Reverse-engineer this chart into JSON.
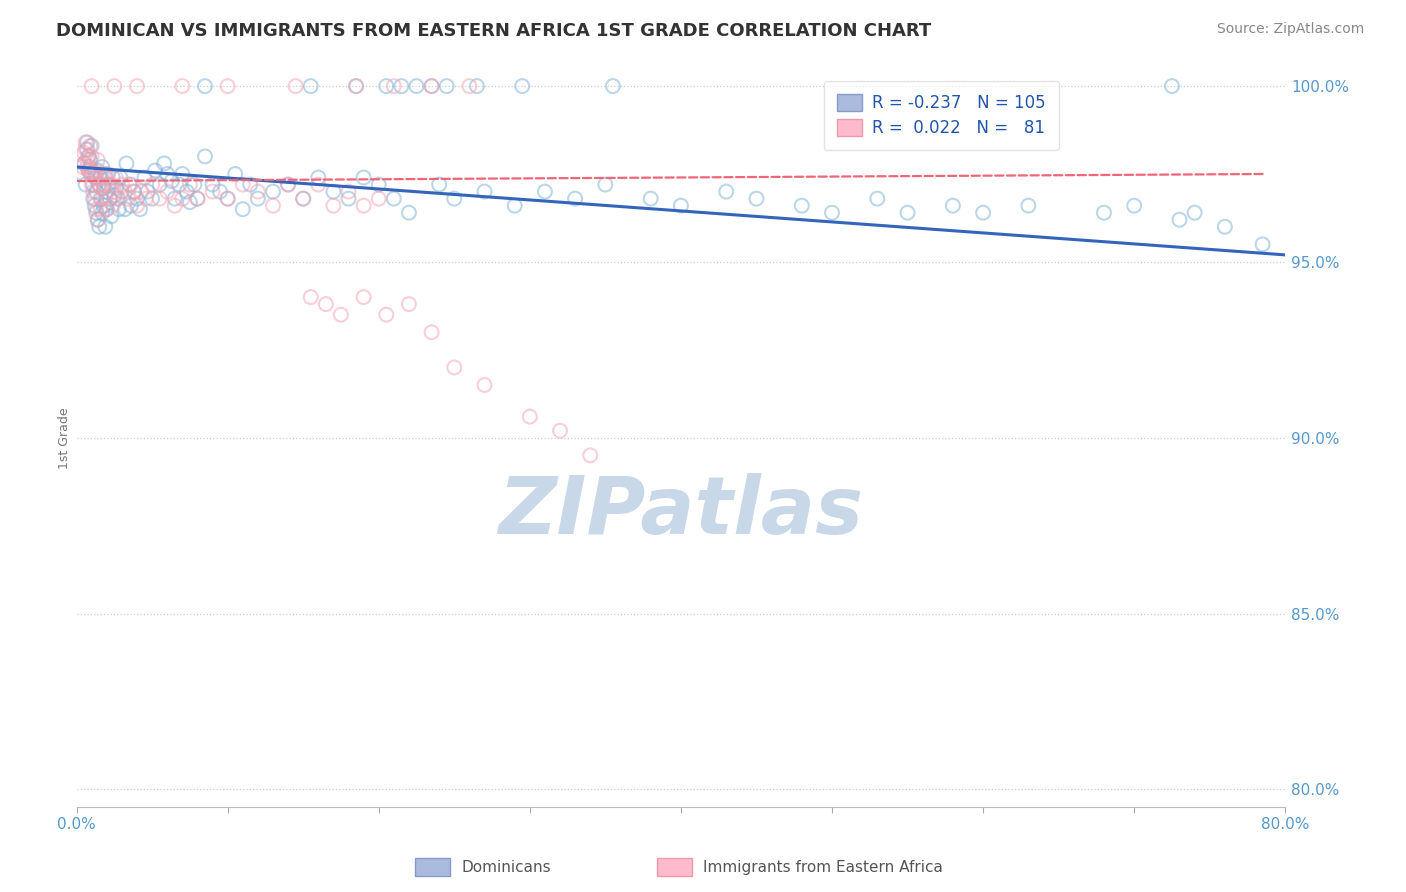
{
  "title": "DOMINICAN VS IMMIGRANTS FROM EASTERN AFRICA 1ST GRADE CORRELATION CHART",
  "source": "Source: ZipAtlas.com",
  "ylabel": "1st Grade",
  "xlim": [
    0.0,
    0.8
  ],
  "ylim": [
    0.795,
    1.005
  ],
  "yticks": [
    0.8,
    0.85,
    0.9,
    0.95,
    1.0
  ],
  "ytick_labels": [
    "80.0%",
    "85.0%",
    "90.0%",
    "95.0%",
    "100.0%"
  ],
  "xticks": [
    0.0,
    0.1,
    0.2,
    0.3,
    0.4,
    0.5,
    0.6,
    0.7,
    0.8
  ],
  "xtick_labels": [
    "0.0%",
    "",
    "",
    "",
    "",
    "",
    "",
    "",
    "80.0%"
  ],
  "blue_R": -0.237,
  "blue_N": 105,
  "pink_R": 0.022,
  "pink_N": 81,
  "blue_color": "#7BAFD4",
  "pink_color": "#F4A0B0",
  "blue_line_color": "#3366BB",
  "pink_line_color": "#EE6677",
  "background_color": "#FFFFFF",
  "grid_color": "#CCCCCC",
  "title_color": "#333333",
  "axis_label_color": "#777777",
  "tick_color": "#5599CC",
  "legend_label_blue": "Dominicans",
  "legend_label_pink": "Immigrants from Eastern Africa",
  "blue_scatter_x": [
    0.004,
    0.005,
    0.006,
    0.007,
    0.007,
    0.008,
    0.008,
    0.009,
    0.009,
    0.01,
    0.01,
    0.011,
    0.011,
    0.012,
    0.012,
    0.013,
    0.013,
    0.014,
    0.014,
    0.015,
    0.015,
    0.016,
    0.016,
    0.017,
    0.017,
    0.018,
    0.018,
    0.019,
    0.019,
    0.02,
    0.02,
    0.021,
    0.022,
    0.023,
    0.024,
    0.025,
    0.026,
    0.027,
    0.028,
    0.029,
    0.03,
    0.032,
    0.033,
    0.035,
    0.036,
    0.038,
    0.04,
    0.042,
    0.045,
    0.047,
    0.05,
    0.052,
    0.055,
    0.058,
    0.06,
    0.063,
    0.065,
    0.068,
    0.07,
    0.073,
    0.075,
    0.078,
    0.08,
    0.085,
    0.09,
    0.095,
    0.1,
    0.105,
    0.11,
    0.115,
    0.12,
    0.13,
    0.14,
    0.15,
    0.16,
    0.17,
    0.18,
    0.19,
    0.2,
    0.21,
    0.22,
    0.24,
    0.25,
    0.27,
    0.29,
    0.31,
    0.33,
    0.35,
    0.38,
    0.4,
    0.43,
    0.45,
    0.48,
    0.5,
    0.53,
    0.55,
    0.58,
    0.6,
    0.63,
    0.68,
    0.7,
    0.73,
    0.74,
    0.76,
    0.785
  ],
  "blue_scatter_y": [
    0.975,
    0.978,
    0.972,
    0.982,
    0.984,
    0.976,
    0.98,
    0.979,
    0.977,
    0.983,
    0.975,
    0.972,
    0.968,
    0.974,
    0.966,
    0.97,
    0.964,
    0.976,
    0.962,
    0.972,
    0.96,
    0.974,
    0.968,
    0.977,
    0.964,
    0.971,
    0.966,
    0.975,
    0.96,
    0.97,
    0.965,
    0.972,
    0.968,
    0.963,
    0.974,
    0.969,
    0.971,
    0.968,
    0.965,
    0.974,
    0.97,
    0.965,
    0.978,
    0.972,
    0.966,
    0.97,
    0.968,
    0.965,
    0.974,
    0.97,
    0.968,
    0.976,
    0.972,
    0.978,
    0.975,
    0.973,
    0.968,
    0.972,
    0.975,
    0.97,
    0.967,
    0.972,
    0.968,
    0.98,
    0.972,
    0.97,
    0.968,
    0.975,
    0.965,
    0.972,
    0.968,
    0.97,
    0.972,
    0.968,
    0.974,
    0.97,
    0.968,
    0.974,
    0.972,
    0.968,
    0.964,
    0.972,
    0.968,
    0.97,
    0.966,
    0.97,
    0.968,
    0.972,
    0.968,
    0.966,
    0.97,
    0.968,
    0.966,
    0.964,
    0.968,
    0.964,
    0.966,
    0.964,
    0.966,
    0.964,
    0.966,
    0.962,
    0.964,
    0.96,
    0.955
  ],
  "pink_scatter_x": [
    0.004,
    0.005,
    0.005,
    0.006,
    0.006,
    0.007,
    0.007,
    0.008,
    0.008,
    0.009,
    0.009,
    0.01,
    0.01,
    0.011,
    0.011,
    0.012,
    0.012,
    0.013,
    0.013,
    0.014,
    0.014,
    0.015,
    0.015,
    0.016,
    0.016,
    0.017,
    0.018,
    0.019,
    0.02,
    0.021,
    0.022,
    0.023,
    0.024,
    0.025,
    0.026,
    0.028,
    0.03,
    0.032,
    0.034,
    0.036,
    0.038,
    0.04,
    0.043,
    0.046,
    0.05,
    0.055,
    0.06,
    0.065,
    0.07,
    0.075,
    0.08,
    0.09,
    0.1,
    0.11,
    0.12,
    0.13,
    0.14,
    0.15,
    0.16,
    0.17,
    0.18,
    0.19,
    0.2,
    0.155,
    0.165,
    0.175,
    0.19,
    0.205,
    0.22,
    0.235,
    0.25,
    0.27,
    0.3,
    0.32,
    0.34
  ],
  "pink_scatter_y": [
    0.977,
    0.981,
    0.978,
    0.982,
    0.984,
    0.979,
    0.977,
    0.98,
    0.976,
    0.983,
    0.975,
    0.98,
    0.972,
    0.975,
    0.97,
    0.976,
    0.968,
    0.974,
    0.965,
    0.979,
    0.962,
    0.974,
    0.972,
    0.971,
    0.965,
    0.968,
    0.972,
    0.974,
    0.965,
    0.975,
    0.968,
    0.972,
    0.966,
    0.97,
    0.974,
    0.968,
    0.972,
    0.97,
    0.968,
    0.972,
    0.97,
    0.966,
    0.97,
    0.968,
    0.972,
    0.968,
    0.97,
    0.966,
    0.968,
    0.972,
    0.968,
    0.97,
    0.968,
    0.972,
    0.97,
    0.966,
    0.972,
    0.968,
    0.972,
    0.966,
    0.97,
    0.966,
    0.968,
    0.94,
    0.938,
    0.935,
    0.94,
    0.935,
    0.938,
    0.93,
    0.92,
    0.915,
    0.906,
    0.902,
    0.895
  ],
  "top_blue_x": [
    0.085,
    0.155,
    0.185,
    0.205,
    0.215,
    0.225,
    0.235,
    0.245,
    0.265,
    0.295,
    0.355,
    0.725
  ],
  "top_blue_y": [
    1.0,
    1.0,
    1.0,
    1.0,
    1.0,
    1.0,
    1.0,
    1.0,
    1.0,
    1.0,
    1.0,
    1.0
  ],
  "top_pink_x": [
    0.01,
    0.025,
    0.04,
    0.07,
    0.1,
    0.145,
    0.185,
    0.21,
    0.235,
    0.26
  ],
  "top_pink_y": [
    1.0,
    1.0,
    1.0,
    1.0,
    1.0,
    1.0,
    1.0,
    1.0,
    1.0,
    1.0
  ],
  "blue_trend_x": [
    0.0,
    0.8
  ],
  "blue_trend_y": [
    0.977,
    0.952
  ],
  "pink_trend_x": [
    0.0,
    0.785
  ],
  "pink_trend_y": [
    0.973,
    0.975
  ],
  "watermark_text": "ZIPatlas",
  "watermark_color": "#C8D8E8",
  "marker_size": 100,
  "marker_alpha": 0.5,
  "marker_linewidth": 1.5
}
